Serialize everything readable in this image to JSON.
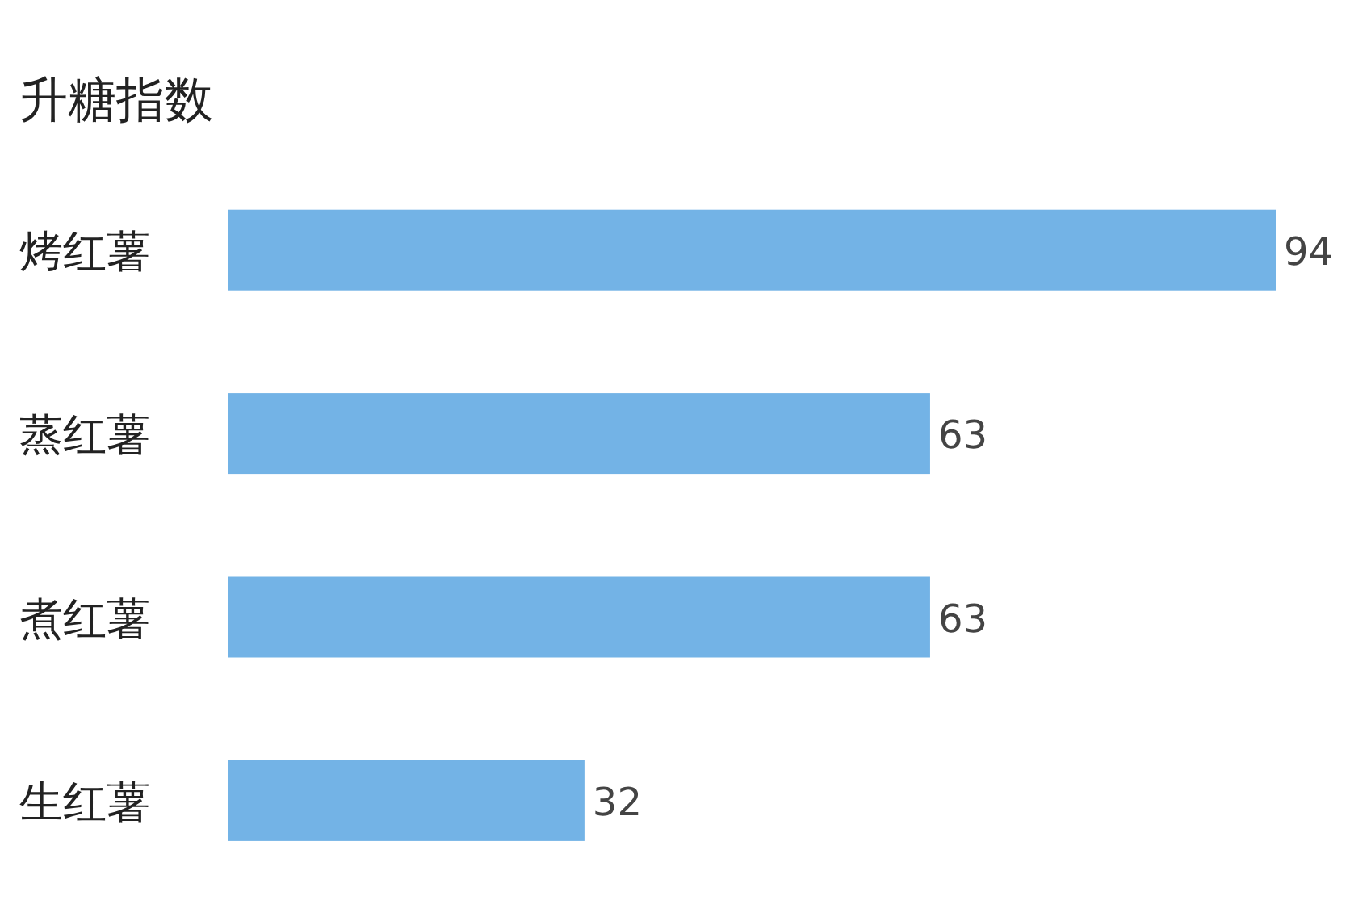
{
  "chart_data": {
    "type": "bar",
    "orientation": "horizontal",
    "title": "升糖指数",
    "categories": [
      "烤红薯",
      "蒸红薯",
      "煮红薯",
      "生红薯"
    ],
    "values": [
      94,
      63,
      63,
      32
    ],
    "color": "#73b3e6",
    "data_labels": true
  }
}
